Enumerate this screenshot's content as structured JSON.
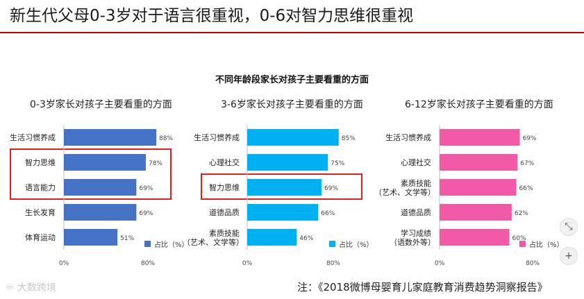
{
  "header": {
    "title": "新生代父母0-3岁对于语言很重视，0-6对智力思维很重视",
    "accent_color": "#c00000"
  },
  "figure_title": "不同年龄段家长对孩子主要看重的方面",
  "footnote": "注：《2018微博母婴育儿家庭教育消费趋势洞察报告》",
  "watermark": "大数跨境",
  "controls": {
    "zoom_out_icon": "compress-icon",
    "zoom_in_icon": "plus-icon",
    "zoom_in_label": "+"
  },
  "chart_data": [
    {
      "type": "bar",
      "orientation": "horizontal",
      "title": "0-3岁家长对孩子主要看重的方面",
      "categories": [
        [
          "生活习惯养成"
        ],
        [
          "智力思维"
        ],
        [
          "语言能力"
        ],
        [
          "生长发育"
        ],
        [
          "体育运动"
        ]
      ],
      "values": [
        88,
        78,
        69,
        69,
        51
      ],
      "value_labels": [
        "88%",
        "78%",
        "69%",
        "69%",
        "51%"
      ],
      "legend": "占比（%）",
      "legend_position": "bottom-right",
      "x_ticks": [
        "0%",
        "80%"
      ],
      "xlim": [
        0,
        100
      ],
      "color": "#4472c4",
      "highlight_indices": [
        1,
        2
      ],
      "highlight_color": "#e02020"
    },
    {
      "type": "bar",
      "orientation": "horizontal",
      "title": "3-6岁家长对孩子主要看重的方面",
      "categories": [
        [
          "生活习惯养成"
        ],
        [
          "心理社交"
        ],
        [
          "智力思维"
        ],
        [
          "道德品质"
        ],
        [
          "素质技能",
          "（艺术、文学等）"
        ]
      ],
      "values": [
        85,
        75,
        69,
        66,
        46
      ],
      "value_labels": [
        "85%",
        "75%",
        "69%",
        "66%",
        "46%"
      ],
      "legend": "占比（%）",
      "legend_position": "bottom-right",
      "x_ticks": [
        "0%",
        "80%"
      ],
      "xlim": [
        0,
        100
      ],
      "color": "#00b0f0",
      "highlight_indices": [
        2
      ],
      "highlight_color": "#e02020"
    },
    {
      "type": "bar",
      "orientation": "horizontal",
      "title": "6-12岁家长对孩子主要看重的方面",
      "categories": [
        [
          "生活习惯养成"
        ],
        [
          "心理社交"
        ],
        [
          "素质技能",
          "（艺术、文学等）"
        ],
        [
          "道德品质"
        ],
        [
          "学习成绩",
          "（语数外等）"
        ]
      ],
      "values": [
        69,
        67,
        66,
        62,
        60
      ],
      "value_labels": [
        "69%",
        "67%",
        "66%",
        "62%",
        "60%"
      ],
      "legend": "占比（%）",
      "legend_position": "bottom-right",
      "x_ticks": [
        "0%",
        "80%"
      ],
      "xlim": [
        0,
        100
      ],
      "color": "#f05aa6",
      "highlight_indices": [],
      "highlight_color": "#e02020"
    }
  ]
}
